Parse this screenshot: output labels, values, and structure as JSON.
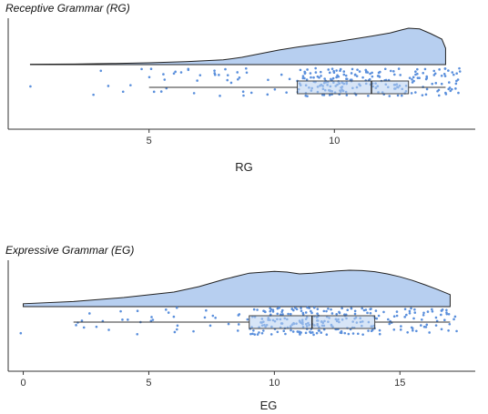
{
  "colors": {
    "fill": "#b7cff0",
    "points": "#5a8fdc",
    "axis": "#333333",
    "outline": "#222222"
  },
  "chart_data": [
    {
      "type": "raincloud",
      "title": "Receptive Grammar (RG)",
      "xlabel": "RG",
      "xlim": [
        1.2,
        13.8
      ],
      "xticks": [
        5,
        10
      ],
      "density": {
        "x": [
          1.8,
          3,
          4,
          5,
          6,
          7,
          7.5,
          8,
          8.5,
          9,
          9.5,
          10,
          10.5,
          11,
          11.5,
          11.8,
          12,
          12.3,
          12.6,
          12.9,
          13
        ],
        "y": [
          0.01,
          0.015,
          0.03,
          0.05,
          0.08,
          0.13,
          0.2,
          0.3,
          0.4,
          0.48,
          0.55,
          0.62,
          0.7,
          0.78,
          0.87,
          0.95,
          1.0,
          0.98,
          0.85,
          0.7,
          0.45
        ]
      },
      "box": {
        "whisker_low": 5,
        "q1": 9,
        "median": 11,
        "q3": 12,
        "whisker_high": 13
      },
      "points": {
        "min": 1.8,
        "max": 13.4,
        "count": 260,
        "outliers": [
          1.8,
          3.5,
          3.7,
          3.9,
          4.3,
          4.5,
          4.8
        ]
      }
    },
    {
      "type": "raincloud",
      "title": "Expressive Grammar (EG)",
      "xlabel": "EG",
      "xlim": [
        -0.6,
        18
      ],
      "xticks": [
        0,
        5,
        10,
        15
      ],
      "density": {
        "x": [
          0,
          2,
          4,
          6,
          7,
          8,
          9,
          10,
          10.5,
          11,
          11.5,
          12,
          12.5,
          13,
          13.5,
          14,
          14.5,
          15,
          15.5,
          16,
          16.5,
          17
        ],
        "y": [
          0.08,
          0.14,
          0.25,
          0.4,
          0.55,
          0.75,
          0.92,
          0.97,
          0.95,
          0.9,
          0.92,
          0.95,
          0.98,
          1.0,
          0.99,
          0.96,
          0.9,
          0.82,
          0.72,
          0.6,
          0.47,
          0.33
        ]
      },
      "box": {
        "whisker_low": 2,
        "q1": 9,
        "median": 11.5,
        "q3": 14,
        "whisker_high": 17
      },
      "points": {
        "min": -0.1,
        "max": 17.3,
        "count": 300,
        "outliers": [
          -0.1
        ]
      }
    }
  ]
}
